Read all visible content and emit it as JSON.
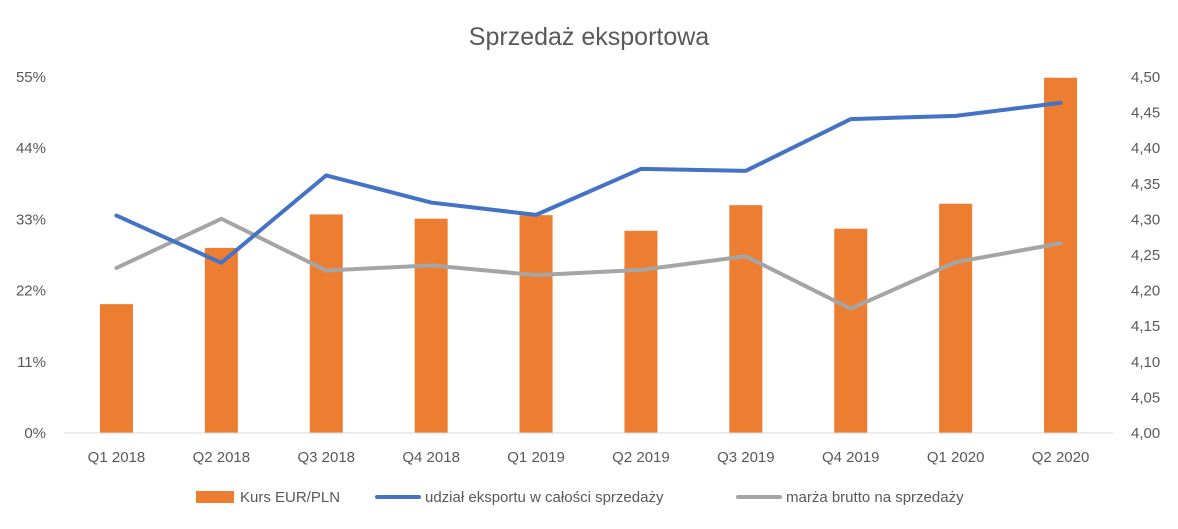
{
  "chart_data": {
    "type": "bar+line",
    "title": "Sprzedaż eksportowa",
    "categories": [
      "Q1 2018",
      "Q2 2018",
      "Q3 2018",
      "Q4 2018",
      "Q1 2019",
      "Q2 2019",
      "Q3 2019",
      "Q4 2019",
      "Q1 2020",
      "Q2 2020"
    ],
    "y_left": {
      "ticks": [
        "0%",
        "11%",
        "22%",
        "33%",
        "44%",
        "55%"
      ],
      "ylim": [
        0,
        55
      ],
      "unit": "%"
    },
    "y_right": {
      "ticks": [
        "4,00",
        "4,05",
        "4,10",
        "4,15",
        "4,20",
        "4,25",
        "4,30",
        "4,35",
        "4,40",
        "4,45",
        "4,50"
      ],
      "ylim": [
        4.0,
        4.5
      ]
    },
    "series": [
      {
        "name": "Kurs EUR/PLN",
        "type": "bar",
        "axis": "right",
        "color": "#ED7D31",
        "values": [
          4.181,
          4.26,
          4.307,
          4.301,
          4.306,
          4.284,
          4.32,
          4.287,
          4.322,
          4.499
        ]
      },
      {
        "name": "udział eksportu w całości sprzedaży",
        "type": "line",
        "axis": "left",
        "color": "#4472C4",
        "values": [
          33.6,
          26.3,
          39.8,
          35.6,
          33.7,
          40.8,
          40.5,
          48.5,
          49.0,
          51.0
        ]
      },
      {
        "name": "marża brutto na sprzedaży",
        "type": "line",
        "axis": "left",
        "color": "#A5A5A5",
        "values": [
          25.5,
          33.1,
          25.1,
          25.9,
          24.4,
          25.2,
          27.3,
          19.2,
          26.4,
          29.3
        ]
      }
    ],
    "grid": false,
    "legend": "bottom"
  }
}
